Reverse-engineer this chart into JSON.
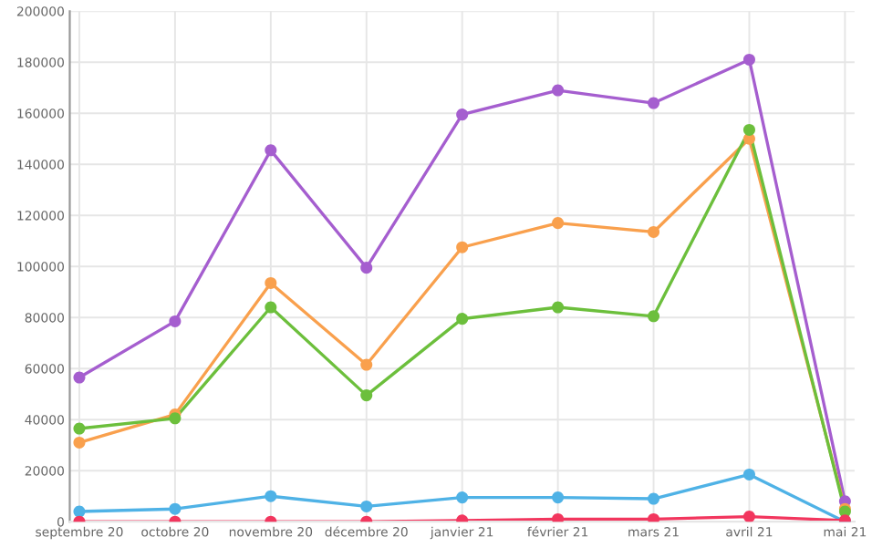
{
  "chart_data": {
    "type": "line",
    "categories": [
      "septembre 20",
      "octobre 20",
      "novembre 20",
      "décembre 20",
      "janvier 21",
      "février 21",
      "mars 21",
      "avril 21",
      "mai 21"
    ],
    "series": [
      {
        "color": "#a55ecf",
        "values": [
          56500,
          78500,
          145500,
          99500,
          159500,
          169000,
          164000,
          181000,
          8000
        ]
      },
      {
        "color": "#f9a04d",
        "values": [
          31000,
          42000,
          93500,
          61500,
          107500,
          117000,
          113500,
          150000,
          5000
        ]
      },
      {
        "color": "#6cbf3c",
        "values": [
          36500,
          40500,
          84000,
          49500,
          79500,
          84000,
          80500,
          153500,
          4000
        ]
      },
      {
        "color": "#4fb2e6",
        "values": [
          4000,
          5000,
          10000,
          6000,
          9500,
          9500,
          9000,
          18500,
          0
        ]
      },
      {
        "color": "#f2365e",
        "values": [
          0,
          0,
          0,
          0,
          500,
          1000,
          1000,
          2000,
          500
        ]
      }
    ],
    "ylim": [
      0,
      200000
    ],
    "yticks": [
      0,
      20000,
      40000,
      60000,
      80000,
      100000,
      120000,
      140000,
      160000,
      180000,
      200000
    ],
    "grid": true,
    "legend": false,
    "marker": "circle",
    "line_style": "solid"
  }
}
